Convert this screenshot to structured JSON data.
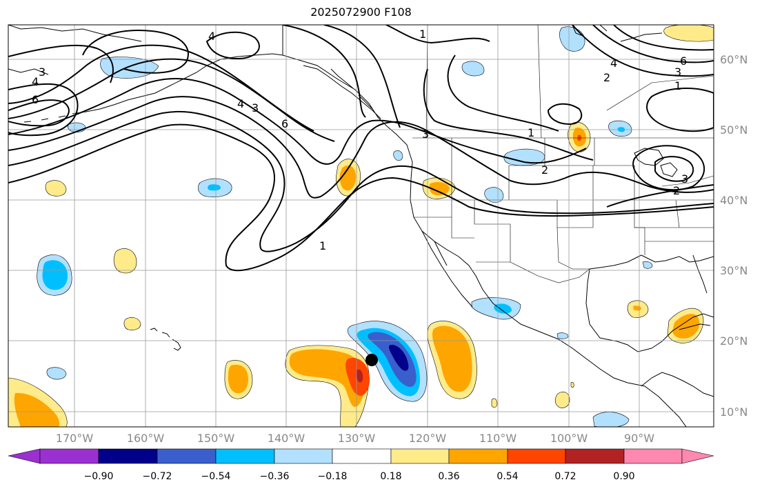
{
  "title": "2025072900 F108",
  "latitude_labels": [
    "60°N",
    "50°N",
    "40°N",
    "30°N",
    "20°N",
    "10°N"
  ],
  "longitude_labels": [
    "170°W",
    "160°W",
    "150°W",
    "140°W",
    "130°W",
    "120°W",
    "110°W",
    "100°W",
    "90°W"
  ],
  "colorbar": {
    "ticks": [
      "−0.90",
      "−0.72",
      "−0.54",
      "−0.36",
      "−0.18",
      "0.18",
      "0.36",
      "0.54",
      "0.72",
      "0.90"
    ],
    "colors": [
      "#9b30d0",
      "#00008b",
      "#3a5fcd",
      "#00bfff",
      "#b2e0ff",
      "#ffffff",
      "#ffeb8a",
      "#ffa500",
      "#ff4500",
      "#b22222",
      "#ff88b0"
    ]
  },
  "contour_labels": {
    "c1": "1",
    "c2": "2",
    "c3": "3",
    "c4": "4",
    "c6": "6"
  },
  "colors": {
    "land_line": "#000000",
    "grid": "#999999",
    "contour": "#000000"
  }
}
